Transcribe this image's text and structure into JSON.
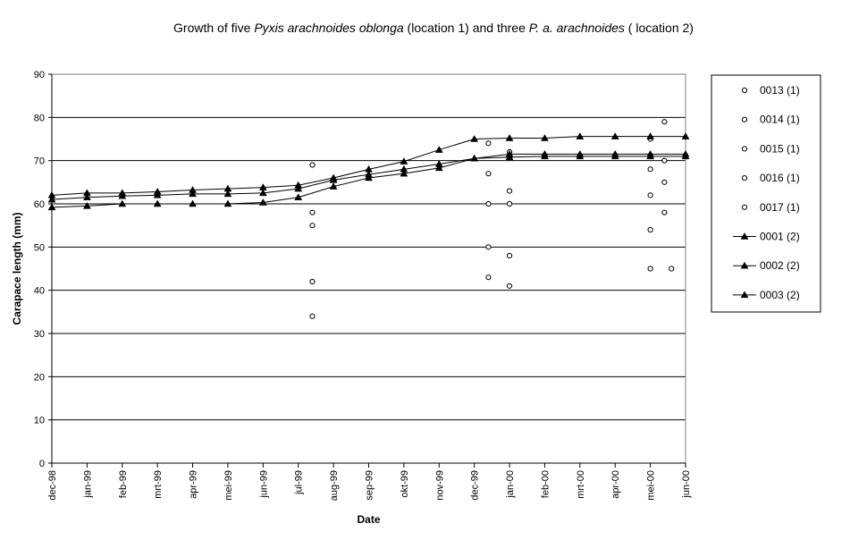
{
  "chart_data": {
    "type": "scatter",
    "title": {
      "parts": [
        {
          "text": "Growth of five ",
          "italic": false
        },
        {
          "text": "Pyxis arachnoides oblonga",
          "italic": true
        },
        {
          "text": " (location 1) and three ",
          "italic": false
        },
        {
          "text": "P. a. arachnoides",
          "italic": true
        },
        {
          "text": " ( location 2)",
          "italic": false
        }
      ]
    },
    "xlabel": "Date",
    "ylabel": "Carapace length (mm)",
    "ylim": [
      0,
      90
    ],
    "yticks": [
      0,
      10,
      20,
      30,
      40,
      50,
      60,
      70,
      80,
      90
    ],
    "x_tick_labels": [
      "dec-98",
      "jan-99",
      "feb-99",
      "mrt-99",
      "apr-99",
      "mei-99",
      "jun-99",
      "jul-99",
      "aug-99",
      "sep-99",
      "okt-99",
      "nov-99",
      "dec-99",
      "jan-00",
      "feb-00",
      "mrt-00",
      "apr-00",
      "mei-00",
      "jun-00"
    ],
    "x_unit": "month index from dec-98",
    "xlim": [
      0,
      18
    ],
    "grid": "horizontal",
    "legend_position": "right",
    "series": [
      {
        "name": "0013 (1)",
        "marker": "circle-open",
        "line": false,
        "points": [
          [
            7.4,
            69
          ],
          [
            12.4,
            74
          ],
          [
            13.0,
            72
          ],
          [
            17.4,
            79
          ]
        ]
      },
      {
        "name": "0014 (1)",
        "marker": "circle-open",
        "line": false,
        "points": [
          [
            7.4,
            58
          ],
          [
            12.4,
            67
          ],
          [
            13.0,
            63
          ],
          [
            17.0,
            75
          ],
          [
            17.4,
            70
          ]
        ]
      },
      {
        "name": "0015 (1)",
        "marker": "circle-open",
        "line": false,
        "points": [
          [
            7.4,
            55
          ],
          [
            12.4,
            60
          ],
          [
            13.0,
            60
          ],
          [
            17.0,
            68
          ],
          [
            17.4,
            65
          ]
        ]
      },
      {
        "name": "0016 (1)",
        "marker": "circle-open",
        "line": false,
        "points": [
          [
            7.4,
            42
          ],
          [
            12.4,
            50
          ],
          [
            13.0,
            48
          ],
          [
            17.0,
            62
          ],
          [
            17.4,
            58
          ]
        ]
      },
      {
        "name": "0017 (1)",
        "marker": "circle-open",
        "line": false,
        "points": [
          [
            7.4,
            34
          ],
          [
            12.4,
            43
          ],
          [
            13.0,
            41
          ],
          [
            17.0,
            54
          ],
          [
            17.0,
            45
          ],
          [
            17.6,
            45
          ]
        ]
      },
      {
        "name": "0001 (2)",
        "marker": "triangle-filled",
        "line": true,
        "points": [
          [
            0,
            62
          ],
          [
            1,
            62.5
          ],
          [
            2,
            62.5
          ],
          [
            3,
            62.8
          ],
          [
            4,
            63.2
          ],
          [
            5,
            63.5
          ],
          [
            6,
            63.8
          ],
          [
            7,
            64.3
          ],
          [
            8,
            66
          ],
          [
            9,
            68
          ],
          [
            10,
            69.8
          ],
          [
            11,
            72.5
          ],
          [
            12,
            75
          ],
          [
            13,
            75.2
          ],
          [
            14,
            75.2
          ],
          [
            15,
            75.6
          ],
          [
            16,
            75.6
          ],
          [
            17,
            75.6
          ],
          [
            18,
            75.6
          ]
        ]
      },
      {
        "name": "0002 (2)",
        "marker": "triangle-filled",
        "line": true,
        "points": [
          [
            0,
            61
          ],
          [
            1,
            61.5
          ],
          [
            2,
            61.8
          ],
          [
            3,
            62
          ],
          [
            4,
            62.3
          ],
          [
            5,
            62.3
          ],
          [
            6,
            62.5
          ],
          [
            7,
            63.5
          ],
          [
            8,
            65.5
          ],
          [
            9,
            66.8
          ],
          [
            10,
            68
          ],
          [
            11,
            69.2
          ],
          [
            12,
            70.5
          ],
          [
            13,
            71.5
          ],
          [
            14,
            71.5
          ],
          [
            15,
            71.5
          ],
          [
            16,
            71.5
          ],
          [
            17,
            71.5
          ],
          [
            18,
            71.5
          ]
        ]
      },
      {
        "name": "0003 (2)",
        "marker": "triangle-filled",
        "line": true,
        "points": [
          [
            0,
            59.2
          ],
          [
            1,
            59.5
          ],
          [
            2,
            60
          ],
          [
            3,
            60
          ],
          [
            4,
            60
          ],
          [
            5,
            60
          ],
          [
            6,
            60.3
          ],
          [
            7,
            61.5
          ],
          [
            8,
            64
          ],
          [
            9,
            66
          ],
          [
            10,
            67
          ],
          [
            11,
            68.3
          ],
          [
            12,
            70.5
          ],
          [
            13,
            70.8
          ],
          [
            14,
            71
          ],
          [
            15,
            71
          ],
          [
            16,
            71
          ],
          [
            17,
            71
          ],
          [
            18,
            71
          ]
        ]
      }
    ]
  }
}
